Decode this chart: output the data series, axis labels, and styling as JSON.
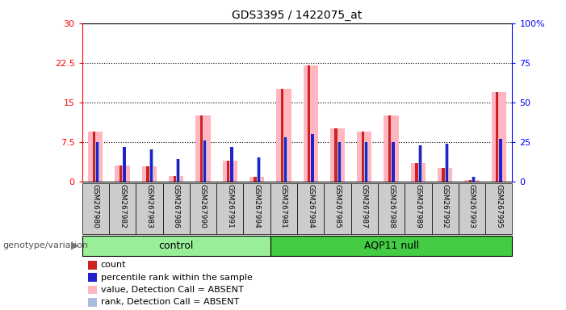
{
  "title": "GDS3395 / 1422075_at",
  "samples": [
    "GSM267980",
    "GSM267982",
    "GSM267983",
    "GSM267986",
    "GSM267990",
    "GSM267991",
    "GSM267994",
    "GSM267981",
    "GSM267984",
    "GSM267985",
    "GSM267987",
    "GSM267988",
    "GSM267989",
    "GSM267992",
    "GSM267993",
    "GSM267995"
  ],
  "groups": [
    {
      "label": "control",
      "start": 0,
      "end": 7,
      "color": "#99EE99"
    },
    {
      "label": "AQP11 null",
      "start": 7,
      "end": 16,
      "color": "#44CC44"
    }
  ],
  "count_values": [
    9.5,
    3.0,
    2.8,
    1.0,
    12.5,
    4.0,
    0.8,
    17.5,
    22.0,
    10.0,
    9.5,
    12.5,
    3.5,
    2.5,
    0.3,
    17.0
  ],
  "rank_values": [
    25,
    22,
    20,
    14,
    26,
    22,
    15,
    28,
    30,
    25,
    25,
    25,
    23,
    24,
    3,
    27
  ],
  "absent_value_values": [
    9.5,
    3.0,
    2.8,
    1.0,
    12.5,
    4.0,
    0.8,
    17.5,
    22.0,
    10.0,
    9.5,
    12.5,
    3.5,
    2.5,
    0.3,
    17.0
  ],
  "absent_rank_values": [
    25,
    22,
    20,
    14,
    26,
    22,
    15,
    28,
    30,
    25,
    25,
    25,
    23,
    24,
    3,
    27
  ],
  "ylim_left": [
    0,
    30
  ],
  "ylim_right": [
    0,
    100
  ],
  "yticks_left": [
    0,
    7.5,
    15,
    22.5,
    30
  ],
  "yticks_right": [
    0,
    25,
    50,
    75,
    100
  ],
  "ytick_labels_left": [
    "0",
    "7.5",
    "15",
    "22.5",
    "30"
  ],
  "ytick_labels_right": [
    "0",
    "25",
    "50",
    "75",
    "100%"
  ],
  "count_color": "#CC2222",
  "rank_color": "#2222CC",
  "absent_value_color": "#FFB6C1",
  "absent_rank_color": "#AABBDD",
  "genotype_label": "genotype/variation",
  "legend_items": [
    {
      "color": "#CC2222",
      "label": "count"
    },
    {
      "color": "#2222CC",
      "label": "percentile rank within the sample"
    },
    {
      "color": "#FFB6C1",
      "label": "value, Detection Call = ABSENT"
    },
    {
      "color": "#AABBDD",
      "label": "rank, Detection Call = ABSENT"
    }
  ]
}
